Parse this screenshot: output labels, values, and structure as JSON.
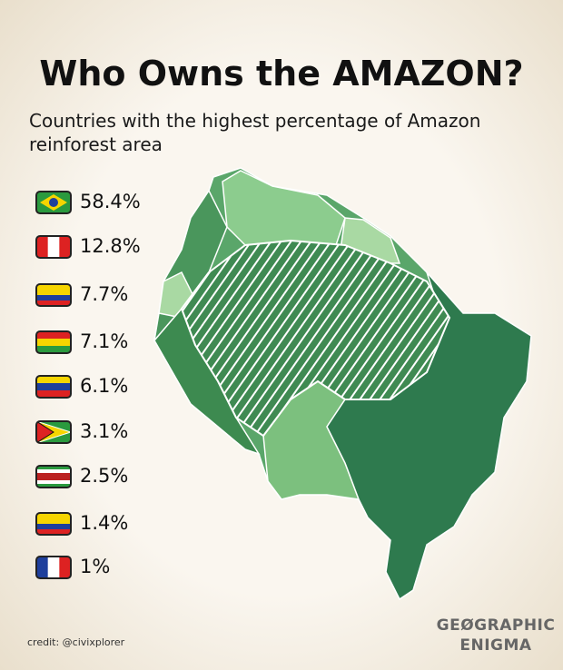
{
  "header": {
    "title": "Who Owns the AMAZON?",
    "subtitle_lines": [
      "Countries with the highest percentage of Amazon",
      "reinforest area"
    ]
  },
  "items": [
    "58.4%",
    "12.8%",
    "7.7%",
    "7.1%",
    "6.1%",
    "3.1%",
    "2.5%",
    "1.4%",
    "1%"
  ],
  "credit": "credit: @civixplorer",
  "brand": [
    "GEØGRAPHIC",
    "ENIGMA"
  ]
}
